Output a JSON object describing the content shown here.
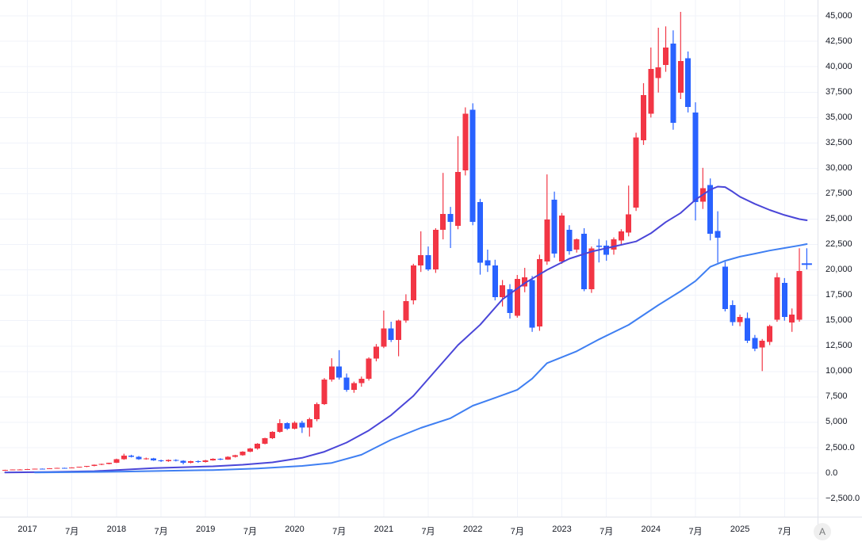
{
  "badge": {
    "label": "A"
  },
  "axes": {
    "y_labels": [
      {
        "text": "45,000",
        "value": 45000
      },
      {
        "text": "42,500",
        "value": 42500
      },
      {
        "text": "40,000",
        "value": 40000
      },
      {
        "text": "37,500",
        "value": 37500
      },
      {
        "text": "35,000",
        "value": 35000
      },
      {
        "text": "32,500",
        "value": 32500
      },
      {
        "text": "30,000",
        "value": 30000
      },
      {
        "text": "27,500",
        "value": 27500
      },
      {
        "text": "25,000",
        "value": 25000
      },
      {
        "text": "22,500",
        "value": 22500
      },
      {
        "text": "20,000",
        "value": 20000
      },
      {
        "text": "17,500",
        "value": 17500
      },
      {
        "text": "15,000",
        "value": 15000
      },
      {
        "text": "12,500",
        "value": 12500
      },
      {
        "text": "10,000",
        "value": 10000
      },
      {
        "text": "7,500",
        "value": 7500
      },
      {
        "text": "5,000",
        "value": 5000
      },
      {
        "text": "2,500.0",
        "value": 2500
      },
      {
        "text": "0.0",
        "value": 0
      },
      {
        "text": "−2,500.0",
        "value": -2500
      }
    ],
    "x_labels": [
      {
        "text": "2017",
        "idx": 3
      },
      {
        "text": "7月",
        "idx": 9
      },
      {
        "text": "2018",
        "idx": 15
      },
      {
        "text": "7月",
        "idx": 21
      },
      {
        "text": "2019",
        "idx": 27
      },
      {
        "text": "7月",
        "idx": 33
      },
      {
        "text": "2020",
        "idx": 39
      },
      {
        "text": "7月",
        "idx": 45
      },
      {
        "text": "2021",
        "idx": 51
      },
      {
        "text": "7月",
        "idx": 57
      },
      {
        "text": "2022",
        "idx": 63
      },
      {
        "text": "7月",
        "idx": 69
      },
      {
        "text": "2023",
        "idx": 75
      },
      {
        "text": "7月",
        "idx": 81
      },
      {
        "text": "2024",
        "idx": 87
      },
      {
        "text": "7月",
        "idx": 93
      },
      {
        "text": "2025",
        "idx": 99
      },
      {
        "text": "7月",
        "idx": 105
      }
    ]
  },
  "chart_data": {
    "type": "candlestick",
    "title": "",
    "x_unit": "month",
    "start_month": "2016-10",
    "interval": "1M",
    "grid": {
      "h_step": 2500,
      "v_step_months": 6,
      "color": "#f0f3fa"
    },
    "y_axis_range_visible": {
      "top_value": 46568,
      "bottom_value": -4290
    },
    "up_color": "#f23645",
    "down_color": "#2962ff",
    "candles": [
      [
        "2016-10",
        240,
        330,
        210,
        310
      ],
      [
        "2016-11",
        310,
        360,
        280,
        340
      ],
      [
        "2016-12",
        340,
        380,
        300,
        360
      ],
      [
        "2017-01",
        360,
        410,
        330,
        390
      ],
      [
        "2017-02",
        390,
        440,
        360,
        430
      ],
      [
        "2017-03",
        430,
        450,
        390,
        415
      ],
      [
        "2017-04",
        415,
        480,
        400,
        460
      ],
      [
        "2017-05",
        460,
        520,
        440,
        505
      ],
      [
        "2017-06",
        505,
        530,
        460,
        490
      ],
      [
        "2017-07",
        490,
        570,
        470,
        555
      ],
      [
        "2017-08",
        555,
        625,
        530,
        605
      ],
      [
        "2017-09",
        605,
        700,
        580,
        685
      ],
      [
        "2017-10",
        685,
        840,
        660,
        820
      ],
      [
        "2017-11",
        820,
        930,
        780,
        905
      ],
      [
        "2017-12",
        905,
        1020,
        860,
        1000
      ],
      [
        "2018-01",
        1000,
        1420,
        980,
        1360
      ],
      [
        "2018-02",
        1360,
        1900,
        1300,
        1720
      ],
      [
        "2018-03",
        1720,
        1800,
        1540,
        1600
      ],
      [
        "2018-04",
        1600,
        1680,
        1300,
        1370
      ],
      [
        "2018-05",
        1370,
        1520,
        1320,
        1460
      ],
      [
        "2018-06",
        1460,
        1500,
        1200,
        1260
      ],
      [
        "2018-07",
        1260,
        1330,
        1090,
        1150
      ],
      [
        "2018-08",
        1150,
        1340,
        1110,
        1300
      ],
      [
        "2018-09",
        1300,
        1360,
        1150,
        1210
      ],
      [
        "2018-10",
        1210,
        1260,
        860,
        1000
      ],
      [
        "2018-11",
        1000,
        1220,
        950,
        1180
      ],
      [
        "2018-12",
        1180,
        1250,
        1010,
        1080
      ],
      [
        "2019-01",
        1080,
        1300,
        1040,
        1260
      ],
      [
        "2019-02",
        1260,
        1450,
        1220,
        1410
      ],
      [
        "2019-03",
        1410,
        1460,
        1260,
        1320
      ],
      [
        "2019-04",
        1320,
        1650,
        1300,
        1610
      ],
      [
        "2019-05",
        1610,
        1800,
        1530,
        1760
      ],
      [
        "2019-06",
        1760,
        2150,
        1700,
        2100
      ],
      [
        "2019-07",
        2100,
        2480,
        2050,
        2420
      ],
      [
        "2019-08",
        2420,
        2950,
        2300,
        2900
      ],
      [
        "2019-09",
        2900,
        3480,
        2820,
        3420
      ],
      [
        "2019-10",
        3420,
        4120,
        3350,
        4050
      ],
      [
        "2019-11",
        4050,
        5300,
        3980,
        4900
      ],
      [
        "2019-12",
        4900,
        5000,
        4250,
        4380
      ],
      [
        "2020-01",
        4380,
        5100,
        4300,
        4950
      ],
      [
        "2020-02",
        4950,
        5150,
        3950,
        4480
      ],
      [
        "2020-03",
        4480,
        5450,
        3600,
        5300
      ],
      [
        "2020-04",
        5300,
        6950,
        5100,
        6800
      ],
      [
        "2020-05",
        6800,
        9350,
        6700,
        9200
      ],
      [
        "2020-06",
        9200,
        11300,
        9000,
        10500
      ],
      [
        "2020-07",
        10500,
        12100,
        9200,
        9400
      ],
      [
        "2020-08",
        9400,
        9800,
        8000,
        8200
      ],
      [
        "2020-09",
        8200,
        9000,
        7900,
        8840
      ],
      [
        "2020-10",
        8840,
        9500,
        8500,
        9280
      ],
      [
        "2020-11",
        9280,
        11400,
        9100,
        11290
      ],
      [
        "2020-12",
        11290,
        12700,
        11000,
        12450
      ],
      [
        "2021-01",
        12450,
        16000,
        12300,
        14250
      ],
      [
        "2021-02",
        14250,
        14900,
        12900,
        13090
      ],
      [
        "2021-03",
        13090,
        15100,
        11500,
        15020
      ],
      [
        "2021-04",
        15020,
        17600,
        14800,
        16930
      ],
      [
        "2021-05",
        17000,
        20600,
        16600,
        20440
      ],
      [
        "2021-06",
        20440,
        23800,
        19800,
        21470
      ],
      [
        "2021-07",
        21470,
        22300,
        19900,
        20050
      ],
      [
        "2021-08",
        20050,
        24100,
        19700,
        23950
      ],
      [
        "2021-09",
        23950,
        29550,
        23000,
        25500
      ],
      [
        "2021-10",
        25500,
        26200,
        22150,
        24730
      ],
      [
        "2021-11",
        24340,
        33170,
        24000,
        29660
      ],
      [
        "2021-12",
        29800,
        36000,
        29300,
        35390
      ],
      [
        "2022-01",
        35780,
        36400,
        24400,
        24730
      ],
      [
        "2022-02",
        26680,
        27000,
        19530,
        20700
      ],
      [
        "2022-03",
        20950,
        22000,
        19800,
        20440
      ],
      [
        "2022-04",
        20440,
        21000,
        17000,
        17320
      ],
      [
        "2022-05",
        17320,
        19000,
        16400,
        18490
      ],
      [
        "2022-06",
        18100,
        18600,
        15200,
        15760
      ],
      [
        "2022-07",
        15500,
        19500,
        15300,
        19130
      ],
      [
        "2022-08",
        18360,
        20200,
        17800,
        19270
      ],
      [
        "2022-09",
        19000,
        19400,
        13900,
        14330
      ],
      [
        "2022-10",
        14450,
        21500,
        14000,
        21080
      ],
      [
        "2022-11",
        20830,
        29400,
        20500,
        24980
      ],
      [
        "2022-12",
        26930,
        27710,
        21200,
        21610
      ],
      [
        "2023-01",
        20830,
        25600,
        20600,
        25370
      ],
      [
        "2023-02",
        23950,
        24400,
        21500,
        21860
      ],
      [
        "2023-03",
        22000,
        23100,
        21700,
        23030
      ],
      [
        "2023-04",
        23560,
        24100,
        17900,
        18100
      ],
      [
        "2023-05",
        18100,
        22300,
        17740,
        22120
      ],
      [
        "2023-06",
        22400,
        23040,
        20730,
        22250
      ],
      [
        "2023-07",
        22370,
        22900,
        20900,
        21470
      ],
      [
        "2023-08",
        21990,
        23200,
        21500,
        23010
      ],
      [
        "2023-09",
        22890,
        24000,
        22400,
        23790
      ],
      [
        "2023-10",
        23660,
        28300,
        23300,
        25470
      ],
      [
        "2023-11",
        26150,
        33500,
        25800,
        33050
      ],
      [
        "2023-12",
        32780,
        38380,
        32300,
        37210
      ],
      [
        "2024-01",
        35390,
        41890,
        35000,
        39800
      ],
      [
        "2024-02",
        38900,
        43840,
        37460,
        39940
      ],
      [
        "2024-03",
        40190,
        43970,
        39500,
        41890
      ],
      [
        "2024-04",
        42280,
        43580,
        33800,
        34480
      ],
      [
        "2024-05",
        37460,
        45400,
        36820,
        40580
      ],
      [
        "2024-06",
        40850,
        41500,
        35500,
        36040
      ],
      [
        "2024-07",
        35510,
        36500,
        24860,
        26680
      ],
      [
        "2024-08",
        26730,
        30050,
        26000,
        28030
      ],
      [
        "2024-09",
        28370,
        29000,
        22910,
        23560
      ],
      [
        "2024-10",
        23820,
        25770,
        20700,
        23170
      ],
      [
        "2024-11",
        20310,
        20800,
        15910,
        16150
      ],
      [
        "2024-12",
        16540,
        17000,
        14500,
        14850
      ],
      [
        "2025-01",
        14850,
        15600,
        14460,
        15370
      ],
      [
        "2025-02",
        15240,
        15800,
        12800,
        13030
      ],
      [
        "2025-03",
        13290,
        13600,
        12000,
        12250
      ],
      [
        "2025-04",
        12380,
        13200,
        10040,
        13030
      ],
      [
        "2025-05",
        12900,
        14600,
        12600,
        14460
      ],
      [
        "2025-06",
        15110,
        19700,
        14900,
        19270
      ],
      [
        "2025-07",
        18740,
        19200,
        15000,
        15370
      ],
      [
        "2025-08",
        14840,
        16200,
        13900,
        15620
      ],
      [
        "2025-09",
        15110,
        22130,
        14900,
        19910
      ],
      [
        "2025-10",
        20640,
        22130,
        20050,
        20570
      ]
    ],
    "moving_averages": [
      {
        "name": "ma-mid-term",
        "color": "#4a46d8",
        "width": 2,
        "points": [
          [
            0,
            60
          ],
          [
            6,
            110
          ],
          [
            12,
            190
          ],
          [
            16,
            330
          ],
          [
            20,
            480
          ],
          [
            24,
            580
          ],
          [
            28,
            660
          ],
          [
            32,
            820
          ],
          [
            36,
            1050
          ],
          [
            40,
            1500
          ],
          [
            43,
            2100
          ],
          [
            46,
            3000
          ],
          [
            49,
            4200
          ],
          [
            52,
            5700
          ],
          [
            55,
            7600
          ],
          [
            58,
            10100
          ],
          [
            61,
            12600
          ],
          [
            64,
            14600
          ],
          [
            67,
            17100
          ],
          [
            70,
            18700
          ],
          [
            73,
            20000
          ],
          [
            76,
            21100
          ],
          [
            79,
            21800
          ],
          [
            82,
            22300
          ],
          [
            85,
            22800
          ],
          [
            87,
            23600
          ],
          [
            89,
            24700
          ],
          [
            91,
            25600
          ],
          [
            93,
            26900
          ],
          [
            95,
            27900
          ],
          [
            96,
            28200
          ],
          [
            97,
            28150
          ],
          [
            98,
            27700
          ],
          [
            99,
            27200
          ],
          [
            101,
            26500
          ],
          [
            103,
            25900
          ],
          [
            105,
            25400
          ],
          [
            107,
            25000
          ],
          [
            108,
            24880
          ]
        ]
      },
      {
        "name": "ma-long-term",
        "color": "#3f7ff2",
        "width": 2,
        "points": [
          [
            4,
            60
          ],
          [
            10,
            90
          ],
          [
            16,
            150
          ],
          [
            22,
            230
          ],
          [
            28,
            300
          ],
          [
            34,
            450
          ],
          [
            40,
            700
          ],
          [
            44,
            1000
          ],
          [
            48,
            1800
          ],
          [
            52,
            3280
          ],
          [
            56,
            4450
          ],
          [
            60,
            5400
          ],
          [
            63,
            6630
          ],
          [
            66,
            7400
          ],
          [
            69,
            8200
          ],
          [
            71,
            9300
          ],
          [
            73,
            10819
          ],
          [
            77,
            11989
          ],
          [
            80,
            13160
          ],
          [
            84,
            14586
          ],
          [
            88,
            16536
          ],
          [
            91,
            17900
          ],
          [
            93,
            18900
          ],
          [
            95,
            20305
          ],
          [
            97,
            20900
          ],
          [
            99,
            21300
          ],
          [
            101,
            21600
          ],
          [
            103,
            21900
          ],
          [
            105,
            22150
          ],
          [
            107,
            22400
          ],
          [
            108,
            22540
          ]
        ]
      }
    ],
    "last_price_marker": {
      "month": "2025-10",
      "value": 20570,
      "style": "plus",
      "color": "#2962ff"
    }
  }
}
